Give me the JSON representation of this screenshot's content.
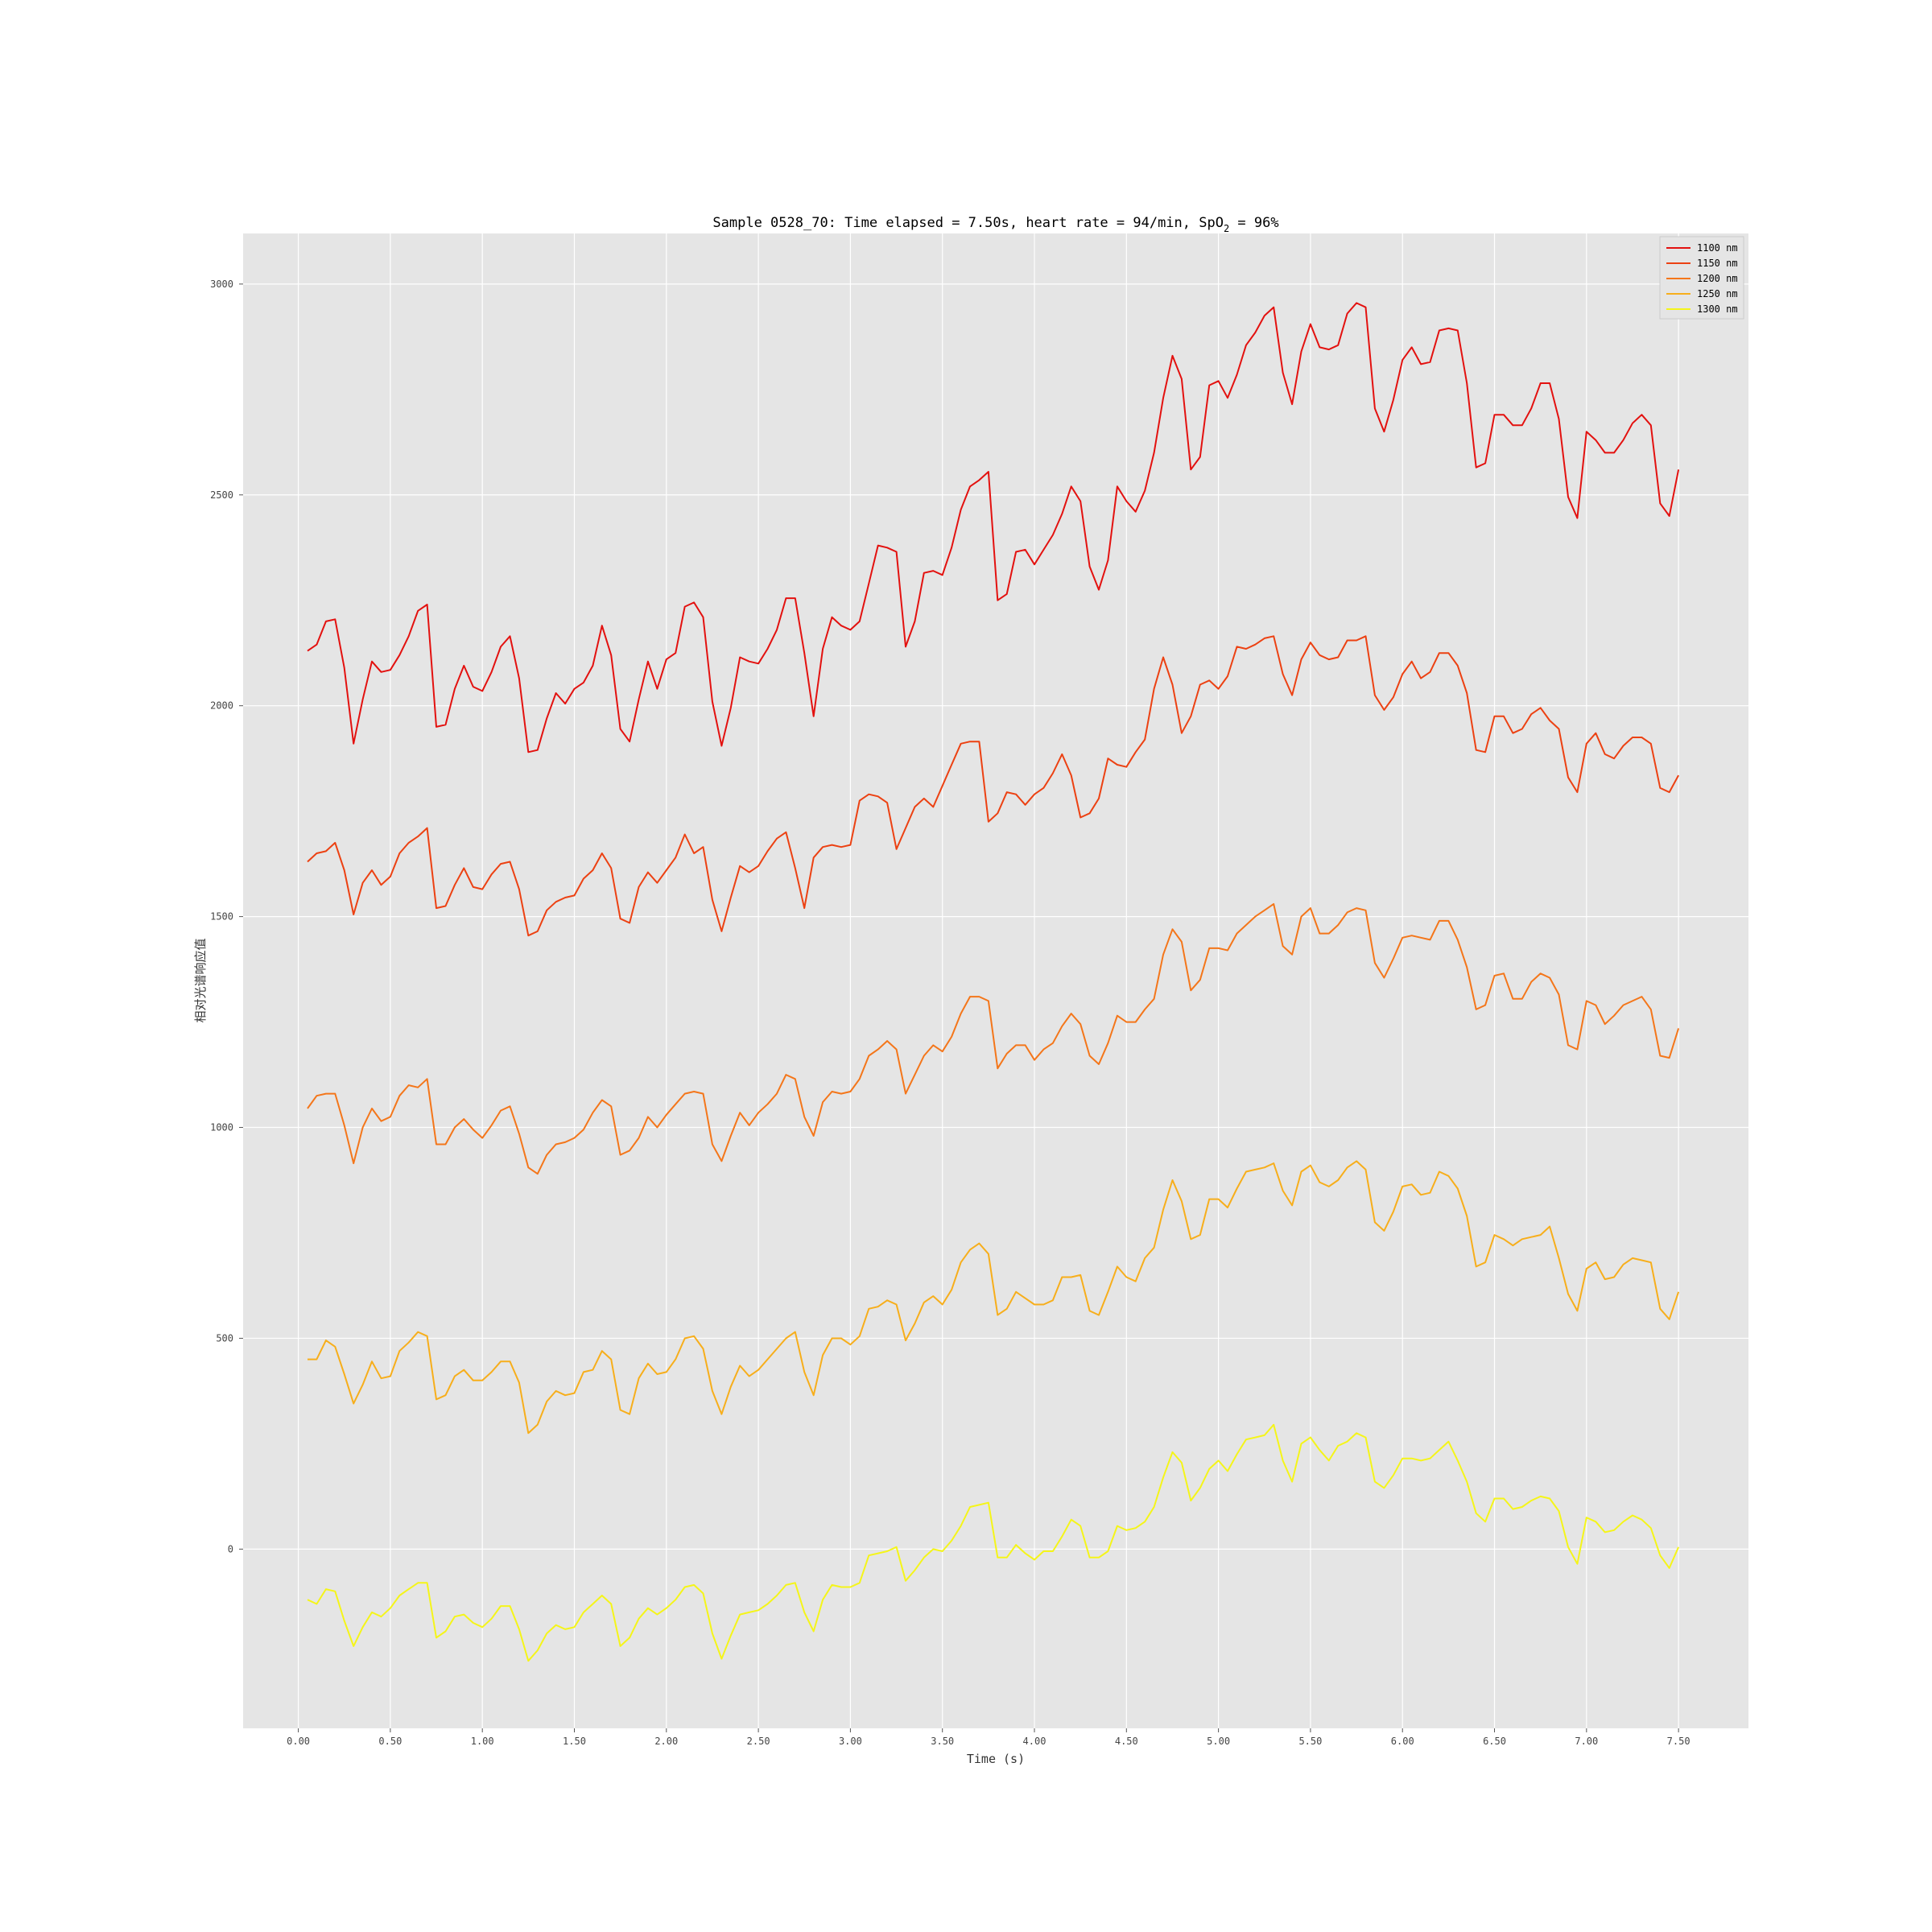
{
  "chart_data": {
    "type": "line",
    "title": "Sample 0528_70: Time elapsed = 7.50s, heart rate = 94/min, SpO",
    "title_sub": "2",
    "title_tail": " = 96%",
    "xlabel": "Time (s)",
    "ylabel": "相对光谱响应值",
    "xlim": [
      -0.3,
      7.88
    ],
    "ylim": [
      -425,
      3120
    ],
    "xticks": [
      0,
      0.5,
      1,
      1.5,
      2,
      2.5,
      3,
      3.5,
      4,
      4.5,
      5,
      5.5,
      6,
      6.5,
      7,
      7.5
    ],
    "xtick_labels": [
      "0.00",
      "0.50",
      "1.00",
      "1.50",
      "2.00",
      "2.50",
      "3.00",
      "3.50",
      "4.00",
      "4.50",
      "5.00",
      "5.50",
      "6.00",
      "6.50",
      "7.00",
      "7.50"
    ],
    "yticks": [
      0,
      500,
      1000,
      1500,
      2000,
      2500,
      3000
    ],
    "ytick_labels": [
      "0",
      "500",
      "1000",
      "1500",
      "2000",
      "2500",
      "3000"
    ],
    "grid": true,
    "legend_position": "top-right",
    "background": "#e5e5e5",
    "x_start": 0.05,
    "x_step": 0.05,
    "series": [
      {
        "name": "1100 nm",
        "color": "#e3110f",
        "values": [
          2130,
          2145,
          2200,
          2205,
          2090,
          1910,
          2015,
          2105,
          2080,
          2085,
          2120,
          2165,
          2225,
          2240,
          1950,
          1955,
          2040,
          2095,
          2045,
          2035,
          2080,
          2140,
          2165,
          2065,
          1890,
          1895,
          1970,
          2030,
          2005,
          2040,
          2055,
          2095,
          2190,
          2120,
          1945,
          1915,
          2015,
          2105,
          2040,
          2110,
          2125,
          2235,
          2245,
          2210,
          2010,
          1905,
          1995,
          2115,
          2105,
          2100,
          2135,
          2180,
          2255,
          2255,
          2125,
          1975,
          2135,
          2210,
          2190,
          2180,
          2200,
          2290,
          2380,
          2375,
          2365,
          2140,
          2200,
          2315,
          2320,
          2310,
          2375,
          2465,
          2520,
          2535,
          2555,
          2250,
          2265,
          2365,
          2370,
          2335,
          2370,
          2405,
          2455,
          2520,
          2485,
          2330,
          2275,
          2345,
          2520,
          2485,
          2460,
          2510,
          2600,
          2730,
          2830,
          2775,
          2560,
          2590,
          2760,
          2770,
          2730,
          2785,
          2855,
          2885,
          2925,
          2945,
          2790,
          2715,
          2840,
          2905,
          2850,
          2845,
          2855,
          2930,
          2955,
          2945,
          2705,
          2650,
          2725,
          2820,
          2850,
          2810,
          2815,
          2890,
          2895,
          2890,
          2765,
          2565,
          2575,
          2690,
          2690,
          2665,
          2665,
          2705,
          2765,
          2765,
          2680,
          2495,
          2445,
          2650,
          2630,
          2600,
          2600,
          2630,
          2670,
          2690,
          2665,
          2480,
          2450,
          2560
        ]
      },
      {
        "name": "1150 nm",
        "color": "#ec4112",
        "values": [
          1630,
          1650,
          1655,
          1675,
          1610,
          1505,
          1580,
          1610,
          1575,
          1595,
          1650,
          1675,
          1690,
          1710,
          1520,
          1525,
          1575,
          1615,
          1570,
          1565,
          1600,
          1625,
          1630,
          1565,
          1455,
          1465,
          1515,
          1535,
          1545,
          1550,
          1590,
          1610,
          1650,
          1615,
          1495,
          1485,
          1570,
          1605,
          1580,
          1610,
          1640,
          1695,
          1650,
          1665,
          1540,
          1465,
          1545,
          1620,
          1605,
          1620,
          1655,
          1685,
          1700,
          1615,
          1520,
          1640,
          1665,
          1670,
          1665,
          1670,
          1775,
          1790,
          1785,
          1770,
          1660,
          1710,
          1760,
          1780,
          1760,
          1810,
          1860,
          1910,
          1915,
          1915,
          1725,
          1745,
          1795,
          1790,
          1765,
          1790,
          1805,
          1840,
          1885,
          1835,
          1735,
          1745,
          1780,
          1875,
          1860,
          1855,
          1890,
          1920,
          2040,
          2115,
          2050,
          1935,
          1975,
          2050,
          2060,
          2040,
          2070,
          2140,
          2135,
          2145,
          2160,
          2165,
          2075,
          2025,
          2110,
          2150,
          2120,
          2110,
          2115,
          2155,
          2155,
          2165,
          2025,
          1990,
          2020,
          2075,
          2105,
          2065,
          2080,
          2125,
          2125,
          2095,
          2030,
          1895,
          1890,
          1975,
          1975,
          1935,
          1945,
          1980,
          1995,
          1965,
          1945,
          1830,
          1795,
          1910,
          1935,
          1885,
          1875,
          1905,
          1925,
          1925,
          1910,
          1805,
          1795,
          1835
        ]
      },
      {
        "name": "1200 nm",
        "color": "#f4761a",
        "values": [
          1045,
          1075,
          1080,
          1080,
          1005,
          915,
          1000,
          1045,
          1015,
          1025,
          1075,
          1100,
          1095,
          1115,
          960,
          960,
          1000,
          1020,
          995,
          975,
          1005,
          1040,
          1050,
          985,
          905,
          890,
          935,
          960,
          965,
          975,
          995,
          1035,
          1065,
          1050,
          935,
          945,
          975,
          1025,
          1000,
          1030,
          1055,
          1080,
          1085,
          1080,
          960,
          920,
          980,
          1035,
          1005,
          1035,
          1055,
          1080,
          1125,
          1115,
          1025,
          980,
          1060,
          1085,
          1080,
          1085,
          1115,
          1170,
          1185,
          1205,
          1185,
          1080,
          1125,
          1170,
          1195,
          1180,
          1215,
          1270,
          1310,
          1310,
          1300,
          1140,
          1175,
          1195,
          1195,
          1160,
          1185,
          1200,
          1240,
          1270,
          1245,
          1170,
          1150,
          1200,
          1265,
          1250,
          1250,
          1280,
          1305,
          1410,
          1470,
          1440,
          1325,
          1350,
          1425,
          1425,
          1420,
          1460,
          1480,
          1500,
          1515,
          1530,
          1430,
          1410,
          1500,
          1520,
          1460,
          1460,
          1480,
          1510,
          1520,
          1515,
          1390,
          1355,
          1400,
          1450,
          1455,
          1450,
          1445,
          1490,
          1490,
          1445,
          1380,
          1280,
          1290,
          1360,
          1365,
          1305,
          1305,
          1345,
          1365,
          1355,
          1315,
          1195,
          1185,
          1300,
          1290,
          1245,
          1265,
          1290,
          1300,
          1310,
          1280,
          1170,
          1165,
          1235
        ]
      },
      {
        "name": "1250 nm",
        "color": "#f7ae1b",
        "values": [
          450,
          450,
          495,
          480,
          415,
          345,
          390,
          445,
          405,
          410,
          470,
          490,
          515,
          505,
          355,
          365,
          410,
          425,
          400,
          400,
          420,
          445,
          445,
          395,
          275,
          295,
          350,
          375,
          365,
          370,
          420,
          425,
          470,
          450,
          330,
          320,
          405,
          440,
          415,
          420,
          450,
          500,
          505,
          475,
          375,
          320,
          385,
          435,
          410,
          425,
          450,
          475,
          500,
          515,
          420,
          365,
          460,
          500,
          500,
          485,
          505,
          570,
          575,
          590,
          580,
          495,
          535,
          585,
          600,
          580,
          615,
          680,
          710,
          725,
          700,
          555,
          570,
          610,
          595,
          580,
          580,
          590,
          645,
          645,
          650,
          565,
          555,
          610,
          670,
          645,
          635,
          690,
          715,
          805,
          875,
          825,
          735,
          745,
          830,
          830,
          810,
          855,
          895,
          900,
          905,
          915,
          850,
          815,
          895,
          910,
          870,
          860,
          875,
          905,
          920,
          900,
          775,
          755,
          800,
          860,
          865,
          840,
          845,
          895,
          885,
          855,
          790,
          670,
          680,
          745,
          735,
          720,
          735,
          740,
          745,
          765,
          690,
          605,
          565,
          665,
          680,
          640,
          645,
          675,
          690,
          685,
          680,
          570,
          545,
          610
        ]
      },
      {
        "name": "1300 nm",
        "color": "#f5f519",
        "values": [
          -120,
          -130,
          -95,
          -100,
          -170,
          -230,
          -185,
          -150,
          -160,
          -140,
          -110,
          -95,
          -80,
          -80,
          -210,
          -195,
          -160,
          -155,
          -175,
          -185,
          -165,
          -135,
          -135,
          -190,
          -265,
          -240,
          -200,
          -180,
          -190,
          -185,
          -150,
          -130,
          -110,
          -130,
          -230,
          -210,
          -165,
          -140,
          -155,
          -140,
          -120,
          -90,
          -85,
          -105,
          -200,
          -260,
          -205,
          -155,
          -150,
          -145,
          -130,
          -110,
          -85,
          -80,
          -150,
          -195,
          -120,
          -85,
          -90,
          -90,
          -80,
          -15,
          -10,
          -5,
          5,
          -75,
          -50,
          -20,
          0,
          -5,
          20,
          55,
          100,
          105,
          110,
          -20,
          -20,
          10,
          -10,
          -25,
          -5,
          -5,
          30,
          70,
          55,
          -20,
          -20,
          -5,
          55,
          45,
          50,
          65,
          100,
          170,
          230,
          205,
          115,
          145,
          190,
          210,
          185,
          225,
          260,
          265,
          270,
          295,
          210,
          160,
          250,
          265,
          235,
          210,
          245,
          255,
          275,
          265,
          160,
          145,
          175,
          215,
          215,
          210,
          215,
          235,
          255,
          210,
          160,
          85,
          65,
          120,
          120,
          95,
          100,
          115,
          125,
          120,
          90,
          5,
          -35,
          75,
          65,
          40,
          45,
          65,
          80,
          70,
          50,
          -15,
          -45,
          5
        ]
      }
    ]
  }
}
